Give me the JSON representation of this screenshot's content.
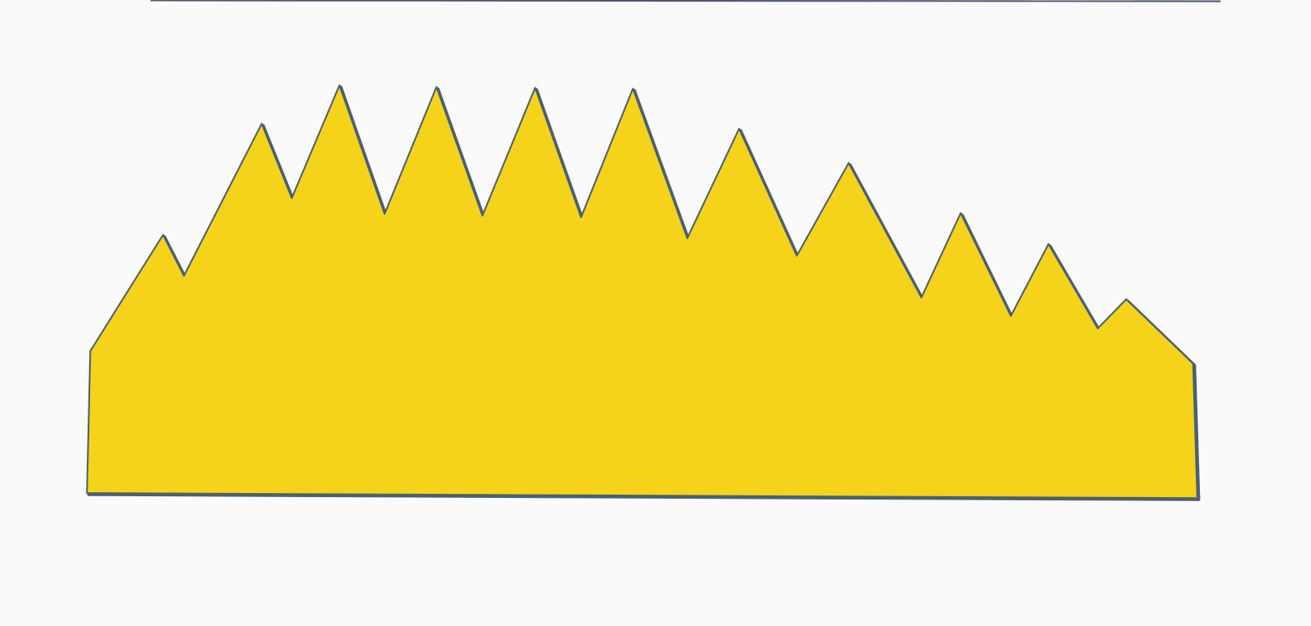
{
  "colors": {
    "background": "#fafafa",
    "shape_fill": "#f5d31a",
    "shape_outline": "#4a6070",
    "top_edge": "#4a5a70"
  }
}
